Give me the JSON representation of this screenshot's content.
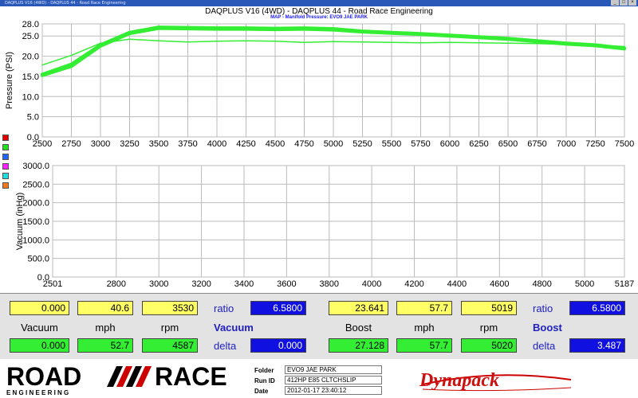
{
  "window": {
    "title": "DAQPLUS V16 (4WD) - DAQPLUS 44 - Road Race Engineering"
  },
  "colors": {
    "boost_line": "#33ee33",
    "accent_blue": "#1010e0",
    "value_yellow": "#ffff66",
    "value_green": "#33ee33"
  },
  "chart_data": [
    {
      "type": "line",
      "title": "DAQPLUS V16 (4WD) - DAQPLUS 44 - Road Race Engineering",
      "subtitle": "MAP - Manifold Pressure: EVO9 JAE PARK",
      "xlabel": "",
      "ylabel": "Pressure (PSI)",
      "xlim": [
        2500,
        7500
      ],
      "ylim": [
        0,
        28
      ],
      "grid": true,
      "x_ticks": [
        "2500",
        "2750",
        "3000",
        "3250",
        "3500",
        "3750",
        "4000",
        "4250",
        "4500",
        "4750",
        "5000",
        "5250",
        "5500",
        "5750",
        "6000",
        "6250",
        "6500",
        "6750",
        "7000",
        "7250",
        "7500"
      ],
      "y_ticks": [
        "0.0",
        "5.0",
        "10.0",
        "15.0",
        "20.0",
        "25.0",
        "28.0"
      ],
      "series": [
        {
          "color": "#33ee33",
          "width": 4,
          "x": [
            2500,
            2750,
            3000,
            3250,
            3500,
            3750,
            4000,
            4250,
            4500,
            4750,
            5000,
            5250,
            5500,
            5750,
            6000,
            6250,
            6500,
            6750,
            7000,
            7250,
            7500
          ],
          "y": [
            15.5,
            18.0,
            22.8,
            25.9,
            27.2,
            27.1,
            27.0,
            27.0,
            26.9,
            27.0,
            26.8,
            26.2,
            25.9,
            25.6,
            25.2,
            24.8,
            24.4,
            23.8,
            23.2,
            22.8,
            22.0
          ]
        },
        {
          "color": "#33ee33",
          "width": 4,
          "x": [
            2500,
            2750,
            3000,
            3250,
            3500,
            3750,
            4000,
            4250,
            4500,
            4750,
            5000,
            5250,
            5500,
            5750,
            6000,
            6250,
            6500,
            6750,
            7000,
            7250,
            7500
          ],
          "y": [
            15.2,
            17.5,
            22.5,
            25.6,
            26.9,
            26.8,
            26.7,
            26.7,
            26.6,
            26.7,
            26.5,
            26.0,
            25.7,
            25.4,
            25.0,
            24.6,
            24.2,
            23.6,
            23.0,
            22.6,
            21.8
          ]
        },
        {
          "color": "#33ee33",
          "width": 1.5,
          "x": [
            2500,
            2750,
            3000,
            3250,
            3500,
            3750,
            4000,
            4250,
            4500,
            4750,
            5000,
            5250,
            5500,
            5750,
            6000,
            6250,
            6500,
            6750,
            7000,
            7250,
            7500
          ],
          "y": [
            17.8,
            20.2,
            23.2,
            24.2,
            23.8,
            23.5,
            23.7,
            23.8,
            23.7,
            23.4,
            23.6,
            23.5,
            23.4,
            23.3,
            23.4,
            23.3,
            23.2,
            23.1,
            22.9,
            22.7,
            22.4
          ]
        }
      ]
    },
    {
      "type": "line",
      "xlabel": "",
      "ylabel": "Vacuum (inHg)",
      "xlim": [
        2501,
        5187
      ],
      "ylim": [
        0,
        3000
      ],
      "grid": true,
      "x_ticks": [
        "2501",
        "2800",
        "3000",
        "3200",
        "3400",
        "3600",
        "3800",
        "4000",
        "4200",
        "4400",
        "4600",
        "4800",
        "5000",
        "5187"
      ],
      "x_tick_values": [
        2501,
        2800,
        3000,
        3200,
        3400,
        3600,
        3800,
        4000,
        4200,
        4400,
        4600,
        4800,
        5000,
        5187
      ],
      "y_ticks": [
        "0.0",
        "500.0",
        "1000.0",
        "1500.0",
        "2000.0",
        "2500.0",
        "3000.0"
      ],
      "series": []
    }
  ],
  "readouts": {
    "vacuum": {
      "top": {
        "vacuum": "0.000",
        "mph": "40.6",
        "rpm": "3530",
        "ratio": "6.5800"
      },
      "bottom": {
        "vacuum": "0.000",
        "mph": "52.7",
        "rpm": "4587",
        "delta": "0.000"
      },
      "labels": {
        "vacuum": "Vacuum",
        "mph": "mph",
        "rpm": "rpm",
        "ratio": "ratio",
        "delta": "delta",
        "heading": "Vacuum"
      }
    },
    "boost": {
      "top": {
        "boost": "23.641",
        "mph": "57.7",
        "rpm": "5019",
        "ratio": "6.5800"
      },
      "bottom": {
        "boost": "27.128",
        "mph": "57.7",
        "rpm": "5020",
        "delta": "3.487"
      },
      "labels": {
        "boost": "Boost",
        "mph": "mph",
        "rpm": "rpm",
        "ratio": "ratio",
        "delta": "delta",
        "heading": "Boost"
      }
    }
  },
  "footer": {
    "logo_road": "ROAD",
    "logo_race": "RACE",
    "logo_engineering": "E N G I N E E R I N G",
    "folder_label": "Folder",
    "folder": "EVO9 JAE PARK",
    "runid_label": "Run ID",
    "runid": "412HP E85 CLTCHSLIP",
    "date_label": "Date",
    "date": "2012-01-17 23:40:12",
    "dynapack": "Dynapack"
  }
}
